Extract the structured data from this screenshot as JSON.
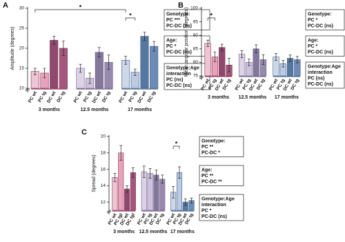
{
  "chart_data": [
    {
      "type": "bar",
      "panel": "A",
      "y_label": "Amplitude (degrees)",
      "ylim": [
        10,
        30
      ],
      "yticks": [
        10,
        15,
        20,
        25,
        30
      ],
      "groups": [
        {
          "label": "3 months",
          "categories": [
            "PC wt",
            "PC tg",
            "DC wt",
            "DC tg"
          ],
          "values": [
            14.2,
            13.8,
            22,
            20
          ],
          "errors": [
            0.8,
            1.2,
            1,
            1.8
          ],
          "colors": [
            "#edc6d2",
            "#e8a3ba",
            "#8d4a6c",
            "#a2587c"
          ],
          "edge": "#8a2d57"
        },
        {
          "label": "12.5 months",
          "categories": [
            "PC wt",
            "PC tg",
            "DC wt",
            "DC tg"
          ],
          "values": [
            15,
            12.5,
            19,
            16.5
          ],
          "errors": [
            1,
            1.3,
            1.2,
            1.8
          ],
          "colors": [
            "#ddd3e6",
            "#cfc2dd",
            "#84789a",
            "#978aac"
          ],
          "edge": "#6b5a8a"
        },
        {
          "label": "17 months",
          "categories": [
            "PC wt",
            "PC tg",
            "DC wt",
            "DC tg"
          ],
          "values": [
            17,
            14,
            23,
            20.5
          ],
          "errors": [
            1,
            0.8,
            1,
            1.2
          ],
          "colors": [
            "#cdd7e8",
            "#bccbe3",
            "#56779f",
            "#6d8bb5"
          ],
          "edge": "#3f5f8a"
        }
      ],
      "significance": [
        {
          "label": "*",
          "from": [
            0,
            0
          ],
          "to": [
            2,
            0
          ]
        },
        {
          "label": "*",
          "from": [
            2,
            0
          ],
          "to": [
            2,
            1
          ]
        }
      ],
      "stats": [
        [
          "Genotype:",
          "PC ***",
          "PC-DC (ns)"
        ],
        [
          "Age:",
          "PC *",
          "PC-DC (ns)"
        ],
        [
          "Genotype:Age",
          "interaction",
          "PC (ns)",
          "PC-DC (ns)"
        ]
      ]
    },
    {
      "type": "bar",
      "panel": "B",
      "y_label": "Mean angular position (degrees)",
      "ylim": [
        75,
        100
      ],
      "yticks": [
        75,
        80,
        85,
        90,
        95,
        100
      ],
      "groups": [
        {
          "label": "3 months",
          "categories": [
            "PC wt",
            "PC tg",
            "DC wt",
            "DC tg"
          ],
          "values": [
            87,
            82,
            85.5,
            79
          ],
          "errors": [
            1.2,
            1.8,
            1.2,
            2.5
          ],
          "colors": [
            "#edc6d2",
            "#e8a3ba",
            "#8d4a6c",
            "#a2587c"
          ],
          "edge": "#8a2d57"
        },
        {
          "label": "12.5 months",
          "categories": [
            "PC wt",
            "PC tg",
            "DC wt",
            "DC tg"
          ],
          "values": [
            83,
            80,
            85,
            81
          ],
          "errors": [
            1.3,
            1.2,
            1.5,
            1.8
          ],
          "colors": [
            "#ddd3e6",
            "#cfc2dd",
            "#84789a",
            "#978aac"
          ],
          "edge": "#6b5a8a"
        },
        {
          "label": "17 months",
          "categories": [
            "PC wt",
            "PC tg",
            "DC wt",
            "DC tg"
          ],
          "values": [
            82,
            79.5,
            81.5,
            81
          ],
          "errors": [
            1.3,
            1.2,
            1.2,
            1.2
          ],
          "colors": [
            "#cdd7e8",
            "#bccbe3",
            "#56779f",
            "#6d8bb5"
          ],
          "edge": "#3f5f8a"
        }
      ],
      "significance": [
        {
          "label": "*",
          "from": [
            0,
            0
          ],
          "to": [
            0,
            1
          ]
        }
      ],
      "stats": [
        [
          "Genotype:",
          "PC *",
          "PC-DC (ns)"
        ],
        [
          "Age:",
          "PC *",
          "PC-DC (ns)"
        ],
        [
          "Genotype:Age",
          "interaction",
          "PC (ns)",
          "PC-DC (ns)"
        ]
      ]
    },
    {
      "type": "bar",
      "panel": "C",
      "y_label": "Spread (degrees)",
      "ylim": [
        11,
        20
      ],
      "yticks": [
        12,
        14,
        16,
        18,
        20
      ],
      "groups": [
        {
          "label": "3 months",
          "categories": [
            "PC wt",
            "PC tgl",
            "DC wt",
            "DC tgl"
          ],
          "values": [
            15,
            18,
            13.6,
            15.6
          ],
          "errors": [
            0.5,
            0.9,
            0.4,
            0.6
          ],
          "colors": [
            "#edc6d2",
            "#e8a3ba",
            "#8d4a6c",
            "#a2587c"
          ],
          "edge": "#8a2d57"
        },
        {
          "label": "12.5 months",
          "categories": [
            "PC wt",
            "PC tg",
            "DC wt",
            "DC tg"
          ],
          "values": [
            15.7,
            15.5,
            15.3,
            14.8
          ],
          "errors": [
            0.7,
            0.6,
            0.6,
            0.5
          ],
          "colors": [
            "#ddd3e6",
            "#cfc2dd",
            "#84789a",
            "#978aac"
          ],
          "edge": "#6b5a8a"
        },
        {
          "label": "17 months",
          "categories": [
            "PC wt",
            "PC tg",
            "DC wt",
            "DC tg"
          ],
          "values": [
            13.2,
            15.6,
            12,
            12.2
          ],
          "errors": [
            0.7,
            0.7,
            0.4,
            0.3
          ],
          "colors": [
            "#cdd7e8",
            "#bccbe3",
            "#56779f",
            "#6d8bb5"
          ],
          "edge": "#3f5f8a"
        }
      ],
      "significance": [
        {
          "label": "*",
          "from": [
            2,
            0
          ],
          "to": [
            2,
            1
          ]
        }
      ],
      "stats": [
        [
          "Genotype:",
          "PC **",
          "PC-DC *"
        ],
        [
          "Age:",
          "PC **",
          "PC-DC **"
        ],
        [
          "Genotype:Age",
          "interaction",
          "PC *",
          "PC-DC (ns)"
        ]
      ]
    }
  ]
}
